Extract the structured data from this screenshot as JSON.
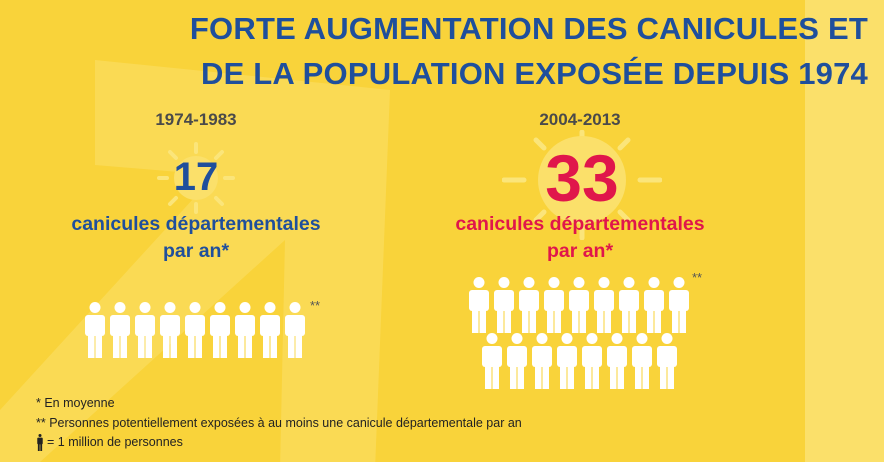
{
  "title": {
    "line1": "FORTE AUGMENTATION DES CANICULES ET",
    "line2": "DE LA POPULATION EXPOSÉE DEPUIS 1974"
  },
  "colors": {
    "background": "#f9d33a",
    "title": "#1f4f9c",
    "period_left": "#1f4f9c",
    "period_right": "#e0164b",
    "people": "#ffffff"
  },
  "periods": [
    {
      "range": "1974-1983",
      "heatwave_count": "17",
      "label_line1": "canicules départementales",
      "label_line2": "par an*",
      "people_count": 9,
      "people_marker": "**"
    },
    {
      "range": "2004-2013",
      "heatwave_count": "33",
      "label_line1": "canicules départementales",
      "label_line2": "par an*",
      "people_count": 17,
      "people_marker": "**"
    }
  ],
  "notes": {
    "average": "* En moyenne",
    "exposed": "** Personnes potentiellement exposées à au moins une canicule départementale par an",
    "legend": "= 1 million de personnes"
  }
}
